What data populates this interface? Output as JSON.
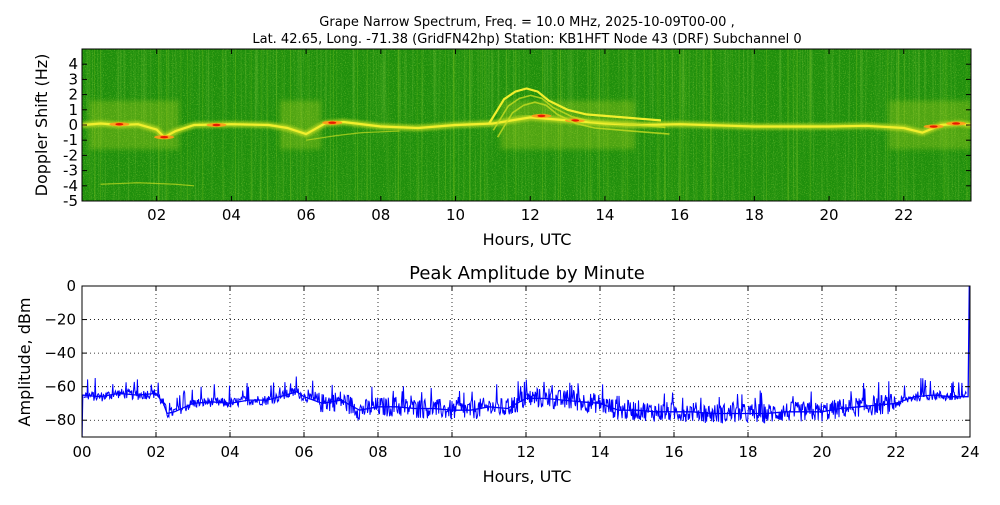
{
  "figure": {
    "title_line1": "Grape Narrow Spectrum, Freq. = 10.0 MHz, 2025-10-09T00-00 ,",
    "title_line2": "Lat.  42.65, Long. -71.38 (GridFN42hp) Station: KB1HFT Node 43 (DRF) Subchannel 0"
  },
  "chart_data": [
    {
      "type": "heatmap",
      "title": "",
      "xlabel": "Hours, UTC",
      "ylabel": "Doppler Shift (Hz)",
      "xlim": [
        0,
        23.8
      ],
      "ylim": [
        -5,
        5
      ],
      "x_ticks": [
        2,
        4,
        6,
        8,
        10,
        12,
        14,
        16,
        18,
        20,
        22
      ],
      "x_tick_labels": [
        "02",
        "04",
        "06",
        "08",
        "10",
        "12",
        "14",
        "16",
        "18",
        "20",
        "22"
      ],
      "y_ticks": [
        -5,
        -4,
        -3,
        -2,
        -1,
        0,
        1,
        2,
        3,
        4
      ],
      "y_tick_labels": [
        "-5",
        "-4",
        "-3",
        "-2",
        "-1",
        "0",
        "1",
        "2",
        "3",
        "4"
      ],
      "colormap": [
        "#138a0a",
        "#2f9e10",
        "#76c01d",
        "#c8dd22",
        "#f2ef2d",
        "#ff9a1a",
        "#e81a00"
      ],
      "background_color": "#1f8f0c",
      "carrier_trace": [
        [
          0.0,
          0.0
        ],
        [
          0.5,
          0.1
        ],
        [
          1.0,
          0.0
        ],
        [
          1.5,
          0.05
        ],
        [
          2.0,
          -0.3
        ],
        [
          2.2,
          -0.8
        ],
        [
          2.5,
          -0.4
        ],
        [
          3.0,
          0.0
        ],
        [
          4.0,
          0.05
        ],
        [
          5.0,
          0.0
        ],
        [
          5.5,
          -0.2
        ],
        [
          6.0,
          -0.6
        ],
        [
          6.5,
          0.1
        ],
        [
          7.0,
          0.2
        ],
        [
          8.0,
          -0.1
        ],
        [
          9.0,
          -0.2
        ],
        [
          10.0,
          0.0
        ],
        [
          11.0,
          0.1
        ],
        [
          12.0,
          0.5
        ],
        [
          13.0,
          0.3
        ],
        [
          14.0,
          0.1
        ],
        [
          15.0,
          0.0
        ],
        [
          16.0,
          0.05
        ],
        [
          18.0,
          -0.1
        ],
        [
          20.0,
          -0.1
        ],
        [
          21.0,
          -0.05
        ],
        [
          22.0,
          -0.2
        ],
        [
          22.5,
          -0.5
        ],
        [
          23.0,
          0.0
        ],
        [
          23.5,
          0.1
        ],
        [
          23.8,
          0.0
        ]
      ],
      "morning_arc": [
        [
          10.9,
          0.1
        ],
        [
          11.1,
          0.9
        ],
        [
          11.3,
          1.7
        ],
        [
          11.6,
          2.2
        ],
        [
          11.9,
          2.4
        ],
        [
          12.2,
          2.2
        ],
        [
          12.5,
          1.6
        ],
        [
          13.0,
          1.0
        ],
        [
          13.5,
          0.7
        ],
        [
          14.5,
          0.5
        ],
        [
          15.5,
          0.3
        ]
      ]
    },
    {
      "type": "line",
      "title": "Peak Amplitude by Minute",
      "xlabel": "Hours, UTC",
      "ylabel": "Amplitude, dBm",
      "xlim": [
        0,
        24
      ],
      "ylim": [
        -90,
        0
      ],
      "x_ticks": [
        0,
        2,
        4,
        6,
        8,
        10,
        12,
        14,
        16,
        18,
        20,
        22,
        24
      ],
      "x_tick_labels": [
        "00",
        "02",
        "04",
        "06",
        "08",
        "10",
        "12",
        "14",
        "16",
        "18",
        "20",
        "22",
        "24"
      ],
      "y_ticks": [
        0,
        -20,
        -40,
        -60,
        -80
      ],
      "y_tick_labels": [
        "0",
        "−20",
        "−40",
        "−60",
        "−80"
      ],
      "grid": true,
      "line_color": "#0000ff",
      "series": [
        {
          "name": "",
          "x": [
            0.0,
            0.02,
            0.5,
            1.0,
            1.5,
            2.0,
            2.2,
            2.3,
            2.5,
            3.0,
            3.5,
            4.0,
            4.5,
            5.0,
            5.5,
            5.8,
            6.0,
            6.5,
            7.0,
            7.5,
            8.0,
            8.5,
            9.0,
            9.5,
            10.0,
            10.5,
            11.0,
            11.5,
            12.0,
            12.5,
            13.0,
            13.5,
            14.0,
            14.5,
            15.0,
            15.5,
            16.0,
            16.5,
            17.0,
            17.5,
            18.0,
            18.5,
            19.0,
            19.5,
            20.0,
            20.5,
            21.0,
            21.5,
            22.0,
            22.5,
            23.0,
            23.5,
            23.95,
            23.98
          ],
          "y": [
            -90,
            -65,
            -66,
            -64,
            -65,
            -64,
            -70,
            -76,
            -75,
            -70,
            -69,
            -70,
            -68,
            -68,
            -65,
            -63,
            -66,
            -70,
            -68,
            -74,
            -72,
            -72,
            -73,
            -73,
            -74,
            -74,
            -72,
            -73,
            -67,
            -67,
            -68,
            -69,
            -70,
            -74,
            -74,
            -75,
            -75,
            -75,
            -76,
            -76,
            -76,
            -76,
            -75,
            -75,
            -75,
            -73,
            -72,
            -71,
            -70,
            -66,
            -65,
            -66,
            -66,
            0
          ]
        }
      ]
    }
  ]
}
